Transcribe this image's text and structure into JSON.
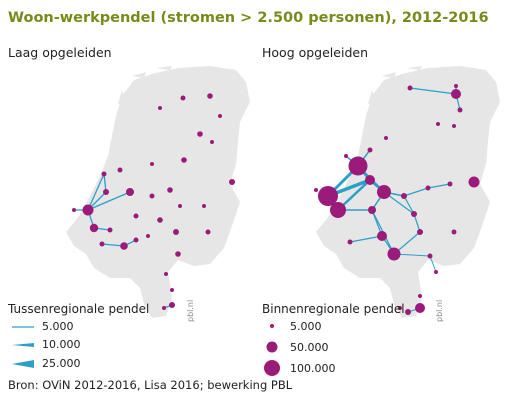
{
  "title": "Woon-werkpendel (stromen > 2.500 personen), 2012-2016",
  "panels": [
    {
      "label": "Laag opgeleiden"
    },
    {
      "label": "Hoog opgeleiden"
    }
  ],
  "legend_inter": {
    "title": "Tussenregionale pendel",
    "items": [
      {
        "label": "5.000"
      },
      {
        "label": "10.000"
      },
      {
        "label": "25.000"
      }
    ]
  },
  "legend_intra": {
    "title": "Binnenregionale pendel",
    "items": [
      {
        "label": "5.000"
      },
      {
        "label": "50.000"
      },
      {
        "label": "100.000"
      }
    ]
  },
  "source": "Bron: OViN 2012-2016, Lisa 2016; bewerking PBL",
  "credit": "pbl.nl",
  "colors": {
    "land": "#e6e6e6",
    "node": "#9b1b7a",
    "flow": "#2aa0c8",
    "title": "#7a8a1a"
  }
}
